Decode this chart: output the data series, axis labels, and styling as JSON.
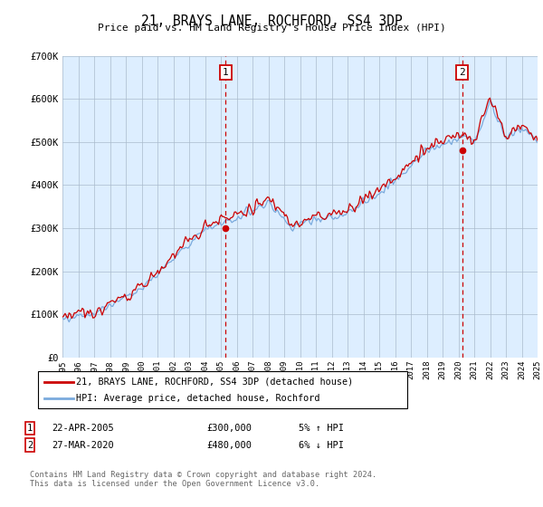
{
  "title": "21, BRAYS LANE, ROCHFORD, SS4 3DP",
  "subtitle": "Price paid vs. HM Land Registry's House Price Index (HPI)",
  "ylim": [
    0,
    700000
  ],
  "yticks": [
    0,
    100000,
    200000,
    300000,
    400000,
    500000,
    600000,
    700000
  ],
  "ytick_labels": [
    "£0",
    "£100K",
    "£200K",
    "£300K",
    "£400K",
    "£500K",
    "£600K",
    "£700K"
  ],
  "xstart_year": 1995,
  "xend_year": 2025,
  "sale1_year": 2005.31,
  "sale1_price": 300000,
  "sale2_year": 2020.24,
  "sale2_price": 480000,
  "hpi_color": "#7aaadd",
  "price_color": "#cc0000",
  "bg_color": "#ddeeff",
  "grid_color": "#aabbcc",
  "legend1_label": "21, BRAYS LANE, ROCHFORD, SS4 3DP (detached house)",
  "legend2_label": "HPI: Average price, detached house, Rochford",
  "ann1_num": "1",
  "ann1_date": "22-APR-2005",
  "ann1_price": "£300,000",
  "ann1_pct": "5% ↑ HPI",
  "ann2_num": "2",
  "ann2_date": "27-MAR-2020",
  "ann2_price": "£480,000",
  "ann2_pct": "6% ↓ HPI",
  "footer_line1": "Contains HM Land Registry data © Crown copyright and database right 2024.",
  "footer_line2": "This data is licensed under the Open Government Licence v3.0."
}
